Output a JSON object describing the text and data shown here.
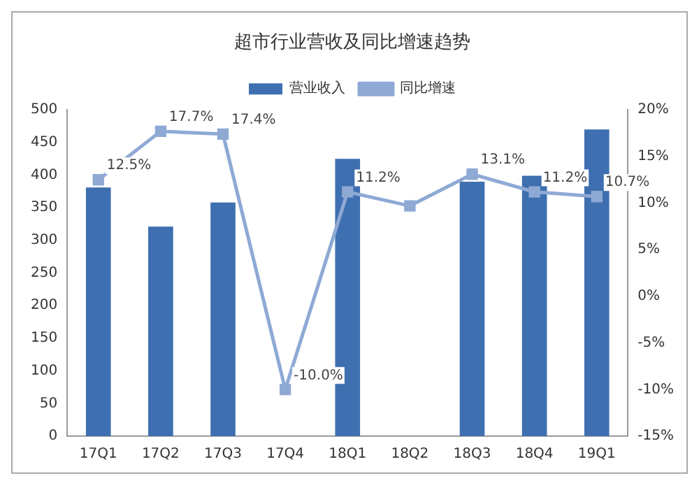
{
  "chart_data": {
    "type": "bar",
    "title": "超市行业营收及同比增速趋势",
    "categories": [
      "17Q1",
      "17Q2",
      "17Q3",
      "17Q4",
      "18Q1",
      "18Q2",
      "18Q3",
      "18Q4",
      "19Q1"
    ],
    "series": [
      {
        "name": "营业收入",
        "color": "#3e6fb0",
        "values": [
          381,
          321,
          358,
          null,
          425,
          null,
          390,
          399,
          470
        ]
      },
      {
        "name": "同比增速",
        "type": "line",
        "axis": "y2",
        "color": "#8ea9d4",
        "marker": "square",
        "values": [
          12.5,
          17.7,
          17.4,
          -10.0,
          11.2,
          9.7,
          13.1,
          11.2,
          10.7
        ],
        "value_labels": [
          "12.5%",
          "17.7%",
          "17.4%",
          "-10.0%",
          "11.2%",
          null,
          "13.1%",
          "11.2%",
          "10.7%"
        ]
      }
    ],
    "ylim": [
      0,
      500
    ],
    "yticks": [
      0,
      50,
      100,
      150,
      200,
      250,
      300,
      350,
      400,
      450,
      500
    ],
    "y2lim": [
      -15,
      20
    ],
    "y2ticks": [
      {
        "value": -15,
        "label": "-15%"
      },
      {
        "value": -10,
        "label": "-10%"
      },
      {
        "value": -5,
        "label": "-5%"
      },
      {
        "value": 0,
        "label": "0%"
      },
      {
        "value": 5,
        "label": "5%"
      },
      {
        "value": 10,
        "label": "10%"
      },
      {
        "value": 15,
        "label": "15%"
      },
      {
        "value": 20,
        "label": "20%"
      }
    ],
    "legend": "top",
    "grid": false
  }
}
